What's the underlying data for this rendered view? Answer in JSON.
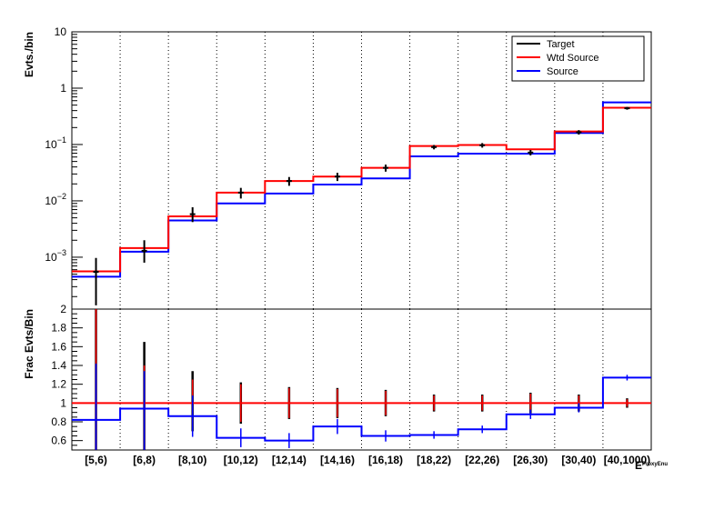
{
  "chart_data": [
    {
      "type": "step",
      "panel": "top",
      "ylabel": "Evts./bin",
      "yscale": "log",
      "ylim": [
        0.00012,
        10
      ],
      "yticks": [
        {
          "v": 10,
          "label": "10"
        },
        {
          "v": 1,
          "label": "1"
        },
        {
          "v": 0.1,
          "base": "10",
          "exp": "−1"
        },
        {
          "v": 0.01,
          "base": "10",
          "exp": "−2"
        },
        {
          "v": 0.001,
          "base": "10",
          "exp": "−3"
        }
      ],
      "categories": [
        "[5,6)",
        "[6,8)",
        "[8,10)",
        "[10,12)",
        "[12,14)",
        "[14,16)",
        "[16,18)",
        "[18,22)",
        "[22,26)",
        "[26,30)",
        "[30,40)",
        "[40,1000)"
      ],
      "legend": {
        "position": "top-right",
        "entries": [
          "Target",
          "Wtd Source",
          "Source"
        ]
      },
      "grid": "vertical-dotted",
      "series": [
        {
          "name": "Target",
          "color": "#000000",
          "style": "points",
          "values": [
            0.00055,
            0.0013,
            0.0058,
            0.014,
            0.0225,
            0.027,
            0.0385,
            0.09,
            0.097,
            0.072,
            0.165,
            0.44
          ],
          "err_low": [
            0.00041,
            0.0005,
            0.0016,
            0.003,
            0.004,
            0.0045,
            0.0055,
            0.008,
            0.009,
            0.008,
            0.015,
            0.025
          ],
          "err_high": [
            0.00042,
            0.0007,
            0.0019,
            0.003,
            0.004,
            0.0045,
            0.0055,
            0.008,
            0.009,
            0.008,
            0.015,
            0.025
          ]
        },
        {
          "name": "Wtd Source",
          "color": "#ff0000",
          "style": "step",
          "values": [
            0.00056,
            0.00145,
            0.0053,
            0.014,
            0.0225,
            0.027,
            0.0385,
            0.094,
            0.098,
            0.082,
            0.17,
            0.45
          ]
        },
        {
          "name": "Source",
          "color": "#0000ff",
          "style": "step",
          "values": [
            0.00045,
            0.00125,
            0.0045,
            0.009,
            0.0135,
            0.0195,
            0.025,
            0.0615,
            0.069,
            0.069,
            0.16,
            0.56
          ]
        }
      ]
    },
    {
      "type": "step",
      "panel": "bottom",
      "ylabel": "Frac Evts/Bin",
      "ylim": [
        0.5,
        2
      ],
      "yticks": [
        0.6,
        0.8,
        1,
        1.2,
        1.4,
        1.6,
        1.8,
        2
      ],
      "xlabel": "E",
      "xlabel_sub": "ProxyEnu",
      "categories": [
        "[5,6)",
        "[6,8)",
        "[8,10)",
        "[10,12)",
        "[12,14)",
        "[14,16)",
        "[16,18)",
        "[18,22)",
        "[22,26)",
        "[26,30)",
        "[30,40)",
        "[40,1000)"
      ],
      "series": [
        {
          "name": "Target",
          "color": "#000000",
          "style": "errorbars",
          "values": [
            1,
            1,
            1,
            1,
            1,
            1,
            1,
            1,
            1,
            1,
            1,
            1
          ],
          "err_low": [
            0.5,
            0.5,
            0.3,
            0.22,
            0.17,
            0.16,
            0.14,
            0.09,
            0.09,
            0.11,
            0.09,
            0.05
          ],
          "err_high": [
            1.0,
            0.65,
            0.34,
            0.22,
            0.17,
            0.16,
            0.14,
            0.09,
            0.09,
            0.11,
            0.09,
            0.05
          ]
        },
        {
          "name": "Wtd Source",
          "color": "#ff0000",
          "style": "step",
          "values": [
            1,
            1,
            1,
            1,
            1,
            1,
            1,
            1,
            1,
            1,
            1,
            1
          ],
          "err_low": [
            0.5,
            0.5,
            0.25,
            0.2,
            0.16,
            0.15,
            0.13,
            0.08,
            0.08,
            0.1,
            0.08,
            0.04
          ],
          "err_high": [
            1.0,
            0.4,
            0.25,
            0.2,
            0.16,
            0.15,
            0.13,
            0.08,
            0.08,
            0.1,
            0.08,
            0.04
          ]
        },
        {
          "name": "Source",
          "color": "#0000ff",
          "style": "step",
          "values": [
            0.82,
            0.94,
            0.86,
            0.63,
            0.6,
            0.75,
            0.65,
            0.66,
            0.72,
            0.88,
            0.95,
            1.27
          ],
          "err_low": [
            0.32,
            0.44,
            0.22,
            0.1,
            0.08,
            0.08,
            0.06,
            0.04,
            0.04,
            0.05,
            0.05,
            0.03
          ],
          "err_high": [
            0.6,
            0.4,
            0.22,
            0.1,
            0.08,
            0.08,
            0.06,
            0.04,
            0.04,
            0.05,
            0.05,
            0.03
          ]
        }
      ]
    }
  ]
}
